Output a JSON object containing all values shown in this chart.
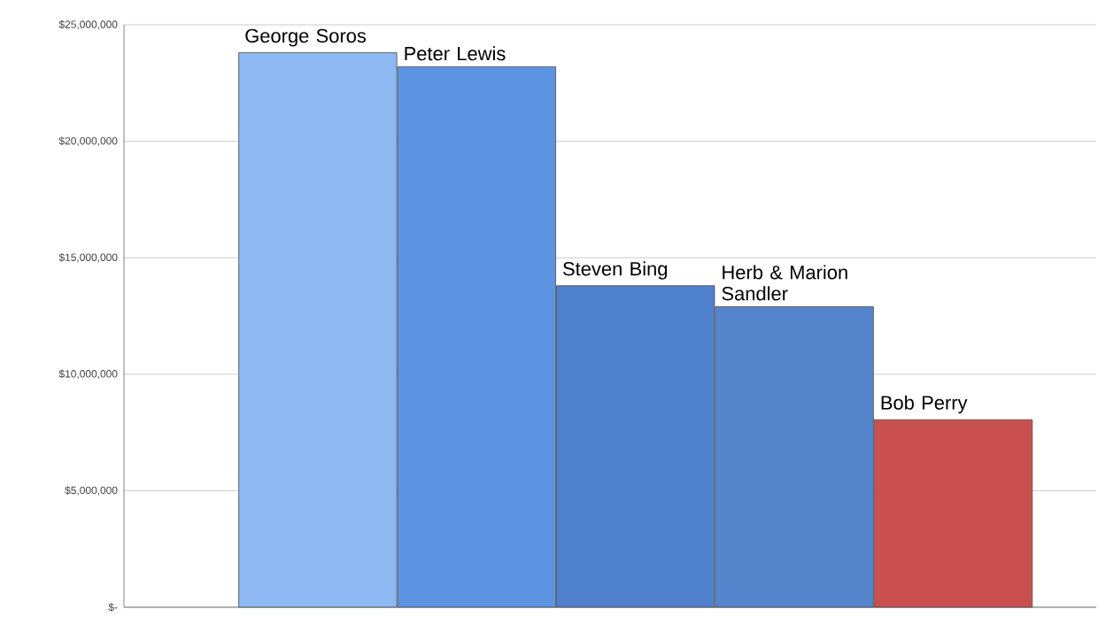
{
  "chart_data": {
    "type": "bar",
    "categories": [
      "George Soros",
      "Peter Lewis",
      "Steven Bing",
      "Herb & Marion Sandler",
      "Bob Perry"
    ],
    "values": [
      23800000,
      23200000,
      13800000,
      12900000,
      8050000
    ],
    "colors": [
      "#8db8f2",
      "#5c94e2",
      "#4f80cc",
      "#5585cc",
      "#c9504f"
    ],
    "ylim": [
      0,
      25000000
    ],
    "yticks": [
      {
        "value": 0,
        "label": "$-"
      },
      {
        "value": 5000000,
        "label": "$5,000,000"
      },
      {
        "value": 10000000,
        "label": "$10,000,000"
      },
      {
        "value": 15000000,
        "label": "$15,000,000"
      },
      {
        "value": 20000000,
        "label": "$20,000,000"
      },
      {
        "value": 25000000,
        "label": "$25,000,000"
      }
    ],
    "grid": "y"
  }
}
